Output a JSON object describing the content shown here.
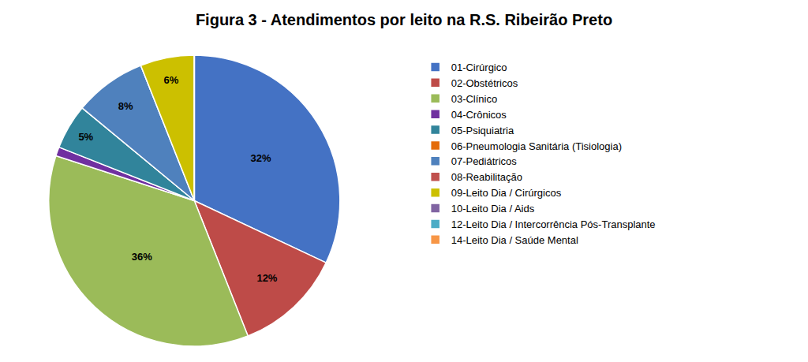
{
  "chart_data": {
    "type": "pie",
    "title": "Figura 3 - Atendimentos por leito na R.S. Ribeirão Preto",
    "categories": [
      "01-Cirúrgico",
      "02-Obstétricos",
      "03-Clínico",
      "04-Crônicos",
      "05-Psiquiatria",
      "06-Pneumologia Sanitária (Tisiologia)",
      "07-Pediátricos",
      "08-Reabilitação",
      "09-Leito Dia / Cirúrgicos",
      "10-Leito Dia / Aids",
      "12-Leito Dia / Intercorrência Pós-Transplante",
      "14-Leito Dia / Saúde Mental"
    ],
    "values": [
      32,
      12,
      36,
      1,
      5,
      0,
      8,
      0,
      6,
      0,
      0,
      0
    ],
    "value_labels": [
      "32%",
      "12%",
      "36%",
      null,
      "5%",
      null,
      "8%",
      null,
      "6%",
      null,
      null,
      null
    ],
    "data_labels": true,
    "colors": [
      "#4472C4",
      "#BE4B48",
      "#9BBB59",
      "#7030A0",
      "#31849B",
      "#E46C0A",
      "#4F81BD",
      "#C0504D",
      "#CCC000",
      "#8064A2",
      "#4BACC6",
      "#F79646"
    ],
    "legend": "right"
  }
}
